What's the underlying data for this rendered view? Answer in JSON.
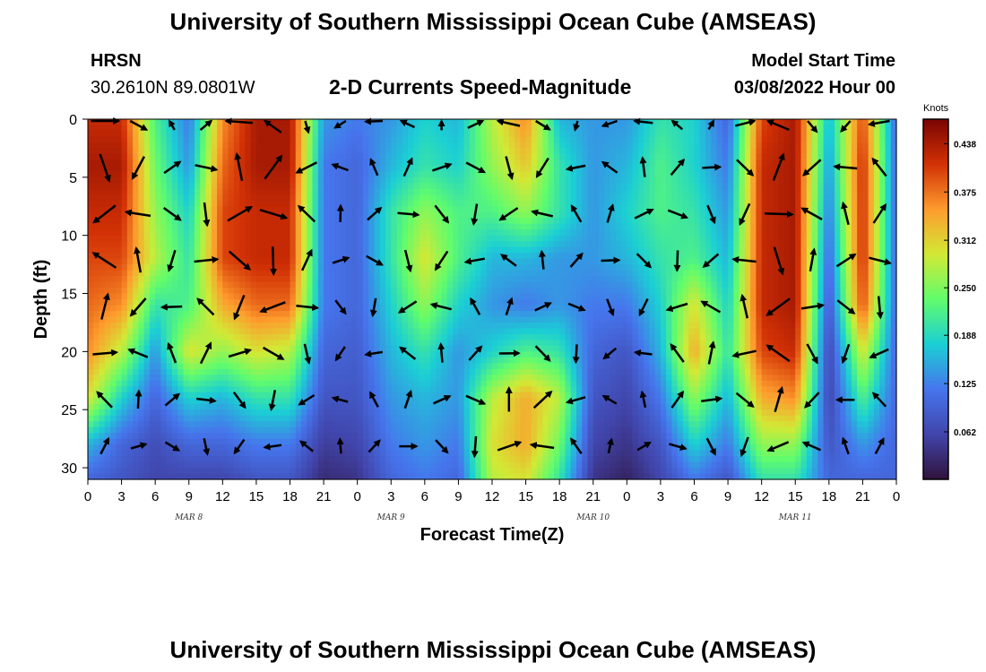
{
  "header": {
    "title": "University of Southern Mississippi Ocean Cube (AMSEAS)",
    "station": "HRSN",
    "coords": "30.2610N  89.0801W",
    "subtitle": "2-D Currents Speed-Magnitude",
    "model_start_label": "Model Start Time",
    "model_start_value": "03/08/2022 Hour 00"
  },
  "footer": {
    "title": "University of Southern Mississippi Ocean Cube (AMSEAS)"
  },
  "colors": {
    "cmap": [
      "#30123b",
      "#4145ab",
      "#4675ed",
      "#1bcfd4",
      "#61fc6c",
      "#d2e935",
      "#fe9b2d",
      "#d23105",
      "#7a0403"
    ]
  },
  "chart_data": {
    "type": "heatmap",
    "title": "2-D Currents Speed-Magnitude",
    "xlabel": "Forecast Time(Z)",
    "ylabel": "Depth (ft)",
    "xlim": [
      0,
      72
    ],
    "ylim": [
      31,
      0
    ],
    "x_ticks": [
      0,
      3,
      6,
      9,
      12,
      15,
      18,
      21,
      24,
      27,
      30,
      33,
      36,
      39,
      42,
      45,
      48,
      51,
      54,
      57,
      60,
      63,
      66,
      69,
      72
    ],
    "x_tick_labels": [
      "0",
      "3",
      "6",
      "9",
      "12",
      "15",
      "18",
      "21",
      "0",
      "3",
      "6",
      "9",
      "12",
      "15",
      "18",
      "21",
      "0",
      "3",
      "6",
      "9",
      "12",
      "15",
      "18",
      "21",
      "0"
    ],
    "y_ticks": [
      0,
      5,
      10,
      15,
      20,
      25,
      30
    ],
    "y_tick_labels": [
      "0",
      "5",
      "10",
      "15",
      "20",
      "25",
      "30"
    ],
    "day_labels": [
      {
        "x": 9,
        "text": "MAR 8"
      },
      {
        "x": 27,
        "text": "MAR 9"
      },
      {
        "x": 45,
        "text": "MAR 10"
      },
      {
        "x": 63,
        "text": "MAR 11"
      }
    ],
    "colorbar": {
      "units": "Knots",
      "min": 0.0,
      "max": 0.47,
      "ticks": [
        0.062,
        0.125,
        0.188,
        0.25,
        0.312,
        0.375,
        0.438
      ],
      "tick_labels": [
        "0.062",
        "0.125",
        "0.188",
        "0.250",
        "0.312",
        "0.375",
        "0.438"
      ]
    },
    "speed_profiles_knots": {
      "depths_ft": [
        0,
        4,
        8,
        12,
        16,
        20,
        24,
        28,
        31
      ],
      "hours": [
        0,
        3,
        6,
        9,
        12,
        15,
        18,
        21,
        24,
        27,
        30,
        33,
        36,
        39,
        42,
        45,
        48,
        51,
        54,
        57,
        60,
        63,
        66,
        69,
        72
      ],
      "values": [
        [
          0.42,
          0.44,
          0.42,
          0.4,
          0.38,
          0.36,
          0.3,
          0.16,
          0.1
        ],
        [
          0.42,
          0.44,
          0.42,
          0.4,
          0.36,
          0.28,
          0.18,
          0.1,
          0.08
        ],
        [
          0.22,
          0.24,
          0.26,
          0.28,
          0.2,
          0.14,
          0.1,
          0.07,
          0.06
        ],
        [
          0.12,
          0.14,
          0.18,
          0.2,
          0.22,
          0.3,
          0.18,
          0.1,
          0.06
        ],
        [
          0.36,
          0.38,
          0.4,
          0.4,
          0.34,
          0.26,
          0.16,
          0.1,
          0.06
        ],
        [
          0.44,
          0.44,
          0.42,
          0.42,
          0.38,
          0.3,
          0.2,
          0.12,
          0.08
        ],
        [
          0.44,
          0.44,
          0.42,
          0.42,
          0.38,
          0.28,
          0.2,
          0.12,
          0.08
        ],
        [
          0.14,
          0.12,
          0.12,
          0.12,
          0.12,
          0.1,
          0.08,
          0.05,
          0.03
        ],
        [
          0.12,
          0.1,
          0.1,
          0.1,
          0.1,
          0.09,
          0.08,
          0.06,
          0.04
        ],
        [
          0.14,
          0.16,
          0.2,
          0.2,
          0.18,
          0.16,
          0.14,
          0.12,
          0.1
        ],
        [
          0.18,
          0.2,
          0.26,
          0.3,
          0.26,
          0.2,
          0.16,
          0.14,
          0.12
        ],
        [
          0.16,
          0.18,
          0.22,
          0.22,
          0.18,
          0.14,
          0.14,
          0.12,
          0.1
        ],
        [
          0.28,
          0.26,
          0.22,
          0.16,
          0.14,
          0.18,
          0.28,
          0.3,
          0.28
        ],
        [
          0.36,
          0.32,
          0.26,
          0.16,
          0.12,
          0.22,
          0.34,
          0.34,
          0.3
        ],
        [
          0.16,
          0.2,
          0.2,
          0.14,
          0.14,
          0.2,
          0.28,
          0.24,
          0.2
        ],
        [
          0.14,
          0.14,
          0.14,
          0.14,
          0.12,
          0.1,
          0.08,
          0.06,
          0.04
        ],
        [
          0.14,
          0.16,
          0.18,
          0.16,
          0.12,
          0.08,
          0.06,
          0.04,
          0.02
        ],
        [
          0.2,
          0.22,
          0.22,
          0.2,
          0.18,
          0.16,
          0.12,
          0.08,
          0.06
        ],
        [
          0.18,
          0.18,
          0.2,
          0.22,
          0.3,
          0.34,
          0.26,
          0.18,
          0.12
        ],
        [
          0.1,
          0.12,
          0.14,
          0.16,
          0.18,
          0.2,
          0.16,
          0.12,
          0.08
        ],
        [
          0.4,
          0.42,
          0.42,
          0.42,
          0.42,
          0.4,
          0.34,
          0.26,
          0.2
        ],
        [
          0.44,
          0.44,
          0.44,
          0.44,
          0.44,
          0.42,
          0.36,
          0.26,
          0.2
        ],
        [
          0.16,
          0.14,
          0.12,
          0.1,
          0.08,
          0.06,
          0.06,
          0.08,
          0.1
        ],
        [
          0.4,
          0.42,
          0.42,
          0.42,
          0.4,
          0.3,
          0.22,
          0.14,
          0.1
        ],
        [
          0.1,
          0.1,
          0.1,
          0.1,
          0.1,
          0.1,
          0.1,
          0.1,
          0.1
        ]
      ]
    }
  }
}
